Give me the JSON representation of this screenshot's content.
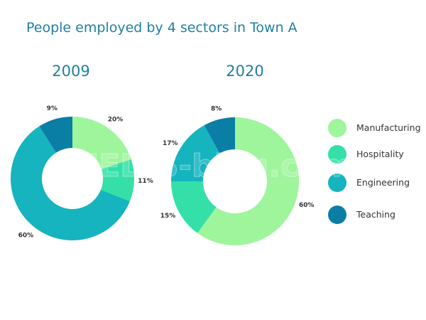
{
  "title": "People employed by 4 sectors in Town A",
  "watermark": "IELTS-blog.com",
  "colors": {
    "Manufacturing": "#9ff59c",
    "Hospitality": "#34e0a8",
    "Engineering": "#15b4be",
    "Teaching": "#0a7ea4"
  },
  "chart_data": [
    {
      "type": "pie",
      "title": "2009",
      "categories": [
        "Manufacturing",
        "Hospitality",
        "Engineering",
        "Teaching"
      ],
      "values": [
        20,
        11,
        60,
        9
      ],
      "labels": [
        "20%",
        "11%",
        "60%",
        "9%"
      ]
    },
    {
      "type": "pie",
      "title": "2020",
      "categories": [
        "Manufacturing",
        "Hospitality",
        "Engineering",
        "Teaching"
      ],
      "values": [
        60,
        15,
        17,
        8
      ],
      "labels": [
        "60%",
        "15%",
        "17%",
        "8%"
      ]
    }
  ],
  "legend": {
    "placement": "right",
    "items": [
      "Manufacturing",
      "Hospitality",
      "Engineering",
      "Teaching"
    ]
  }
}
